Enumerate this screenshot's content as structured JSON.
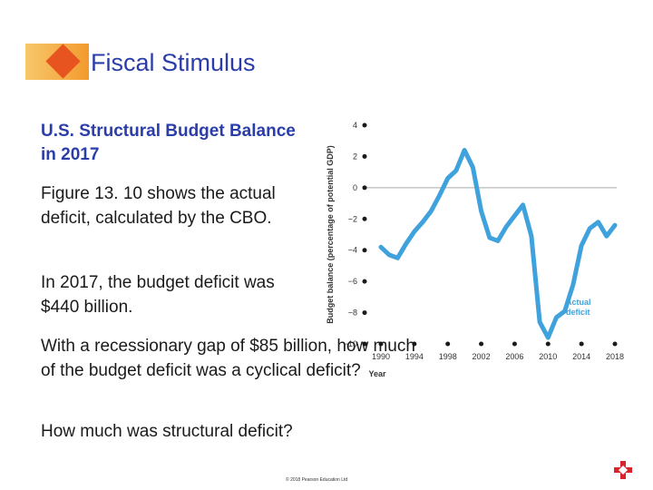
{
  "slide": {
    "title": "Fiscal Stimulus",
    "heading": "U.S. Structural Budget Balance in 2017",
    "paragraphs": [
      "Figure 13. 10 shows the actual deficit, calculated by the CBO.",
      "In 2017, the budget deficit was $440 billion.",
      "With a recessionary gap of $85 billion, how much of the budget deficit was a cyclical deficit?",
      "How much was structural deficit?"
    ],
    "copyright": "© 2018 Pearson Education Ltd"
  },
  "colors": {
    "title": "#2b3da8",
    "line": "#3fa2dc",
    "accent": "#e8541f",
    "zero_line": "#aaaaaa"
  },
  "icons": {
    "nav": "red-cross-nav-icon"
  },
  "chart_data": {
    "type": "line",
    "title": "",
    "xlabel": "Year",
    "ylabel": "Budget balance (percentage of potential GDP)",
    "xlim": [
      1990,
      2018
    ],
    "ylim": [
      -10,
      4
    ],
    "x_ticks": [
      "1990",
      "1994",
      "1998",
      "2002",
      "2006",
      "2010",
      "2014",
      "2018"
    ],
    "y_ticks": [
      "4",
      "2",
      "0",
      "−2",
      "−4",
      "−6",
      "−8",
      "−10"
    ],
    "annotation": "Actual deficit",
    "series": [
      {
        "name": "",
        "x": [
          1990,
          1991,
          1992,
          1993,
          1994,
          1995,
          1996,
          1997,
          1998,
          1999,
          2000,
          2001,
          2002,
          2003,
          2004,
          2005,
          2006,
          2007,
          2008,
          2009,
          2010,
          2011,
          2012,
          2013,
          2014,
          2015,
          2016,
          2017,
          2018
        ],
        "y": [
          -3.8,
          -4.3,
          -4.5,
          -3.6,
          -2.8,
          -2.2,
          -1.5,
          -0.5,
          0.6,
          1.1,
          2.4,
          1.3,
          -1.5,
          -3.2,
          -3.4,
          -2.5,
          -1.8,
          -1.1,
          -3.1,
          -8.6,
          -9.6,
          -8.3,
          -7.9,
          -6.2,
          -3.7,
          -2.6,
          -2.2,
          -3.1,
          -2.4
        ]
      }
    ]
  }
}
